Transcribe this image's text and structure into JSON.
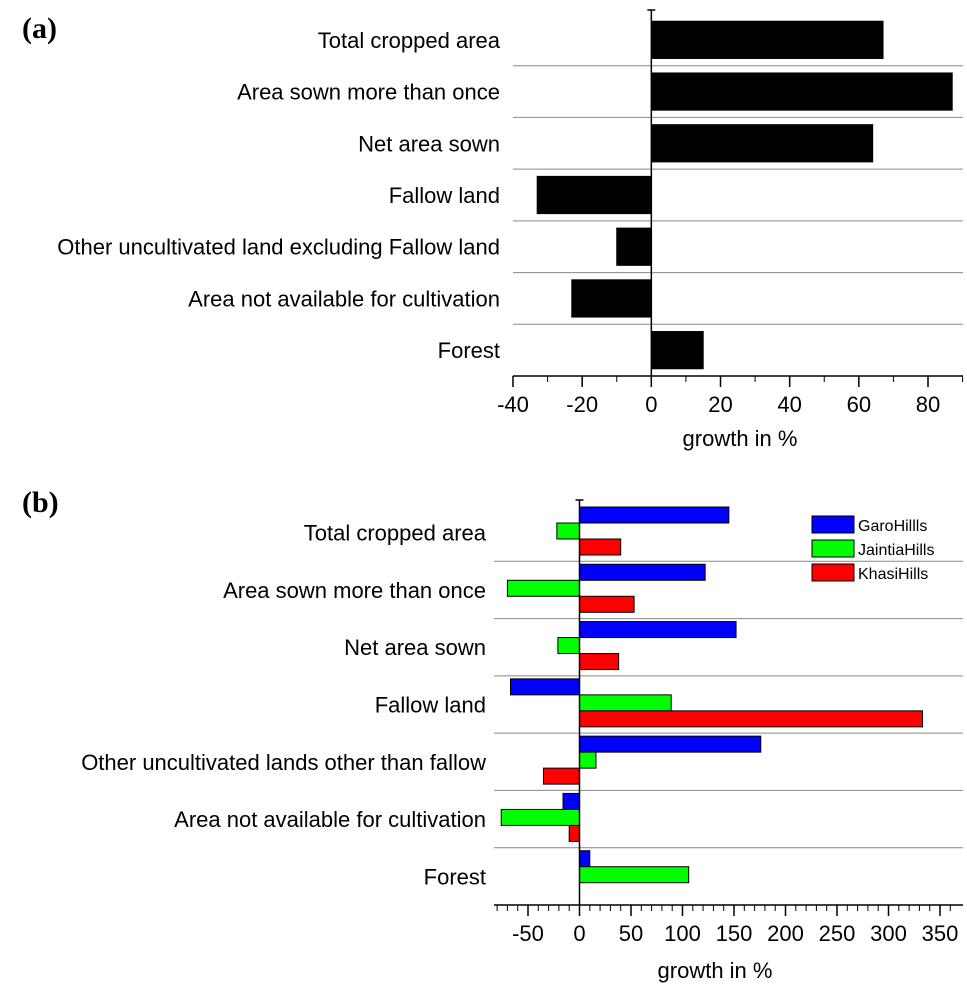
{
  "chart_data": [
    {
      "panel_label": "(a)",
      "type": "bar",
      "orientation": "horizontal",
      "categories": [
        "Total cropped area",
        "Area sown more than once",
        "Net area sown",
        "Fallow land",
        "Other uncultivated land excluding Fallow land",
        "Area not available for cultivation",
        "Forest"
      ],
      "series": [
        {
          "color": "#000000",
          "values": [
            67,
            87,
            64,
            -33,
            -10,
            -23,
            15
          ]
        }
      ],
      "xlabel": "growth in %",
      "xlim": [
        -40,
        93
      ],
      "xticks": [
        -40,
        -20,
        0,
        20,
        40,
        60,
        80
      ],
      "xtick_labels": [
        "-40",
        "-20",
        "0",
        "20",
        "40",
        "60",
        "80"
      ],
      "minor_step": 10,
      "grid": "horizontal separators between categories"
    },
    {
      "panel_label": "(b)",
      "type": "bar",
      "orientation": "horizontal",
      "categories": [
        "Total cropped area",
        "Area sown more than once",
        "Net area sown",
        "Fallow land",
        "Other uncultivated lands other than fallow",
        "Area not available for cultivation",
        "Forest"
      ],
      "series": [
        {
          "name": "GaroHillls",
          "color": "#0000ff",
          "values": [
            145,
            122,
            152,
            -67,
            176,
            -16,
            10
          ]
        },
        {
          "name": "JaintiaHills",
          "color": "#00ff00",
          "values": [
            -22,
            -70,
            -21,
            89,
            16,
            -76,
            106
          ]
        },
        {
          "name": "KhasiHills",
          "color": "#ff0000",
          "values": [
            40,
            53,
            38,
            333,
            -35,
            -10,
            0
          ]
        }
      ],
      "xlabel": "growth in %",
      "xlim": [
        -90,
        365
      ],
      "xticks": [
        -50,
        0,
        50,
        100,
        150,
        200,
        250,
        300,
        350
      ],
      "xtick_labels": [
        "-50",
        "0",
        "50",
        "100",
        "150",
        "200",
        "250",
        "300",
        "350"
      ],
      "minor_step": 10,
      "legend_position": "top-right",
      "grid": "horizontal separators between categories"
    }
  ]
}
